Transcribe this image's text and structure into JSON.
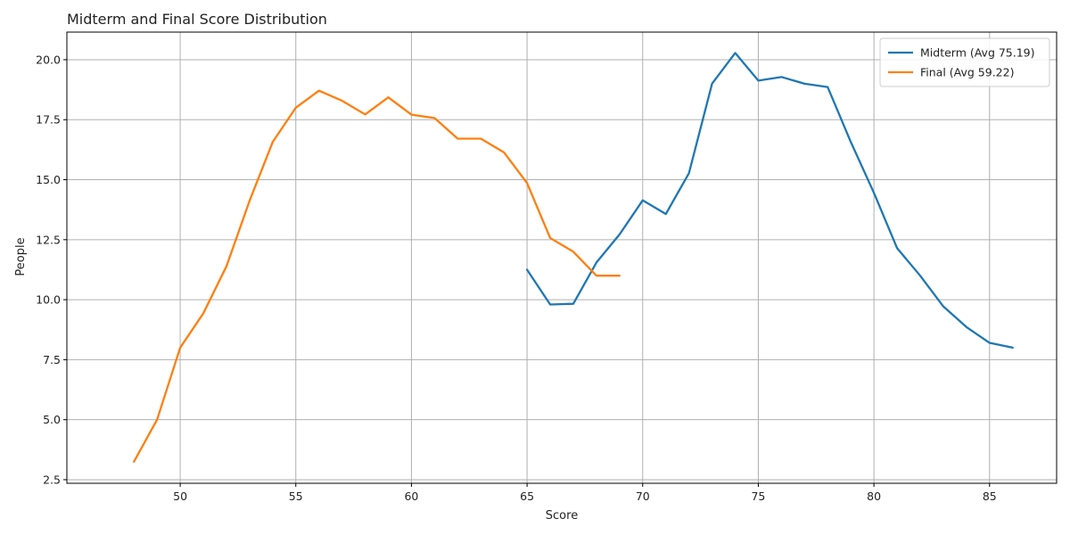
{
  "chart_data": {
    "type": "line",
    "title": "Midterm and Final Score Distribution",
    "xlabel": "Score",
    "ylabel": "People",
    "xlim": [
      45.1,
      87.9
    ],
    "ylim": [
      2.35,
      21.15
    ],
    "xticks": [
      50,
      55,
      60,
      65,
      70,
      75,
      80,
      85
    ],
    "yticks": [
      2.5,
      5.0,
      7.5,
      10.0,
      12.5,
      15.0,
      17.5,
      20.0
    ],
    "ytick_labels": [
      "2.5",
      "5.0",
      "7.5",
      "10.0",
      "12.5",
      "15.0",
      "17.5",
      "20.0"
    ],
    "grid": true,
    "legend_position": "top-right",
    "series": [
      {
        "name": "Midterm (Avg 75.19)",
        "color": "#1f77b4",
        "x": [
          65,
          66,
          67,
          68,
          69,
          70,
          71,
          72,
          73,
          74,
          75,
          76,
          77,
          78,
          79,
          80,
          81,
          82,
          83,
          84,
          85,
          86
        ],
        "y": [
          11.25,
          9.8,
          9.83,
          11.55,
          12.72,
          14.14,
          13.57,
          15.27,
          19.0,
          20.28,
          19.13,
          19.28,
          19.0,
          18.86,
          16.57,
          14.45,
          12.15,
          11.0,
          9.72,
          8.86,
          8.2,
          8.0
        ]
      },
      {
        "name": "Final (Avg 59.22)",
        "color": "#ff7f0e",
        "x": [
          48,
          49,
          50,
          51,
          52,
          53,
          54,
          55,
          56,
          57,
          58,
          59,
          60,
          61,
          62,
          63,
          64,
          65,
          66,
          67,
          68,
          69
        ],
        "y": [
          3.25,
          5.0,
          8.0,
          9.43,
          11.39,
          14.12,
          16.57,
          18.0,
          18.71,
          18.29,
          17.72,
          18.43,
          17.71,
          17.57,
          16.71,
          16.71,
          16.14,
          14.86,
          12.57,
          12.0,
          11.0,
          11.0
        ]
      }
    ]
  }
}
